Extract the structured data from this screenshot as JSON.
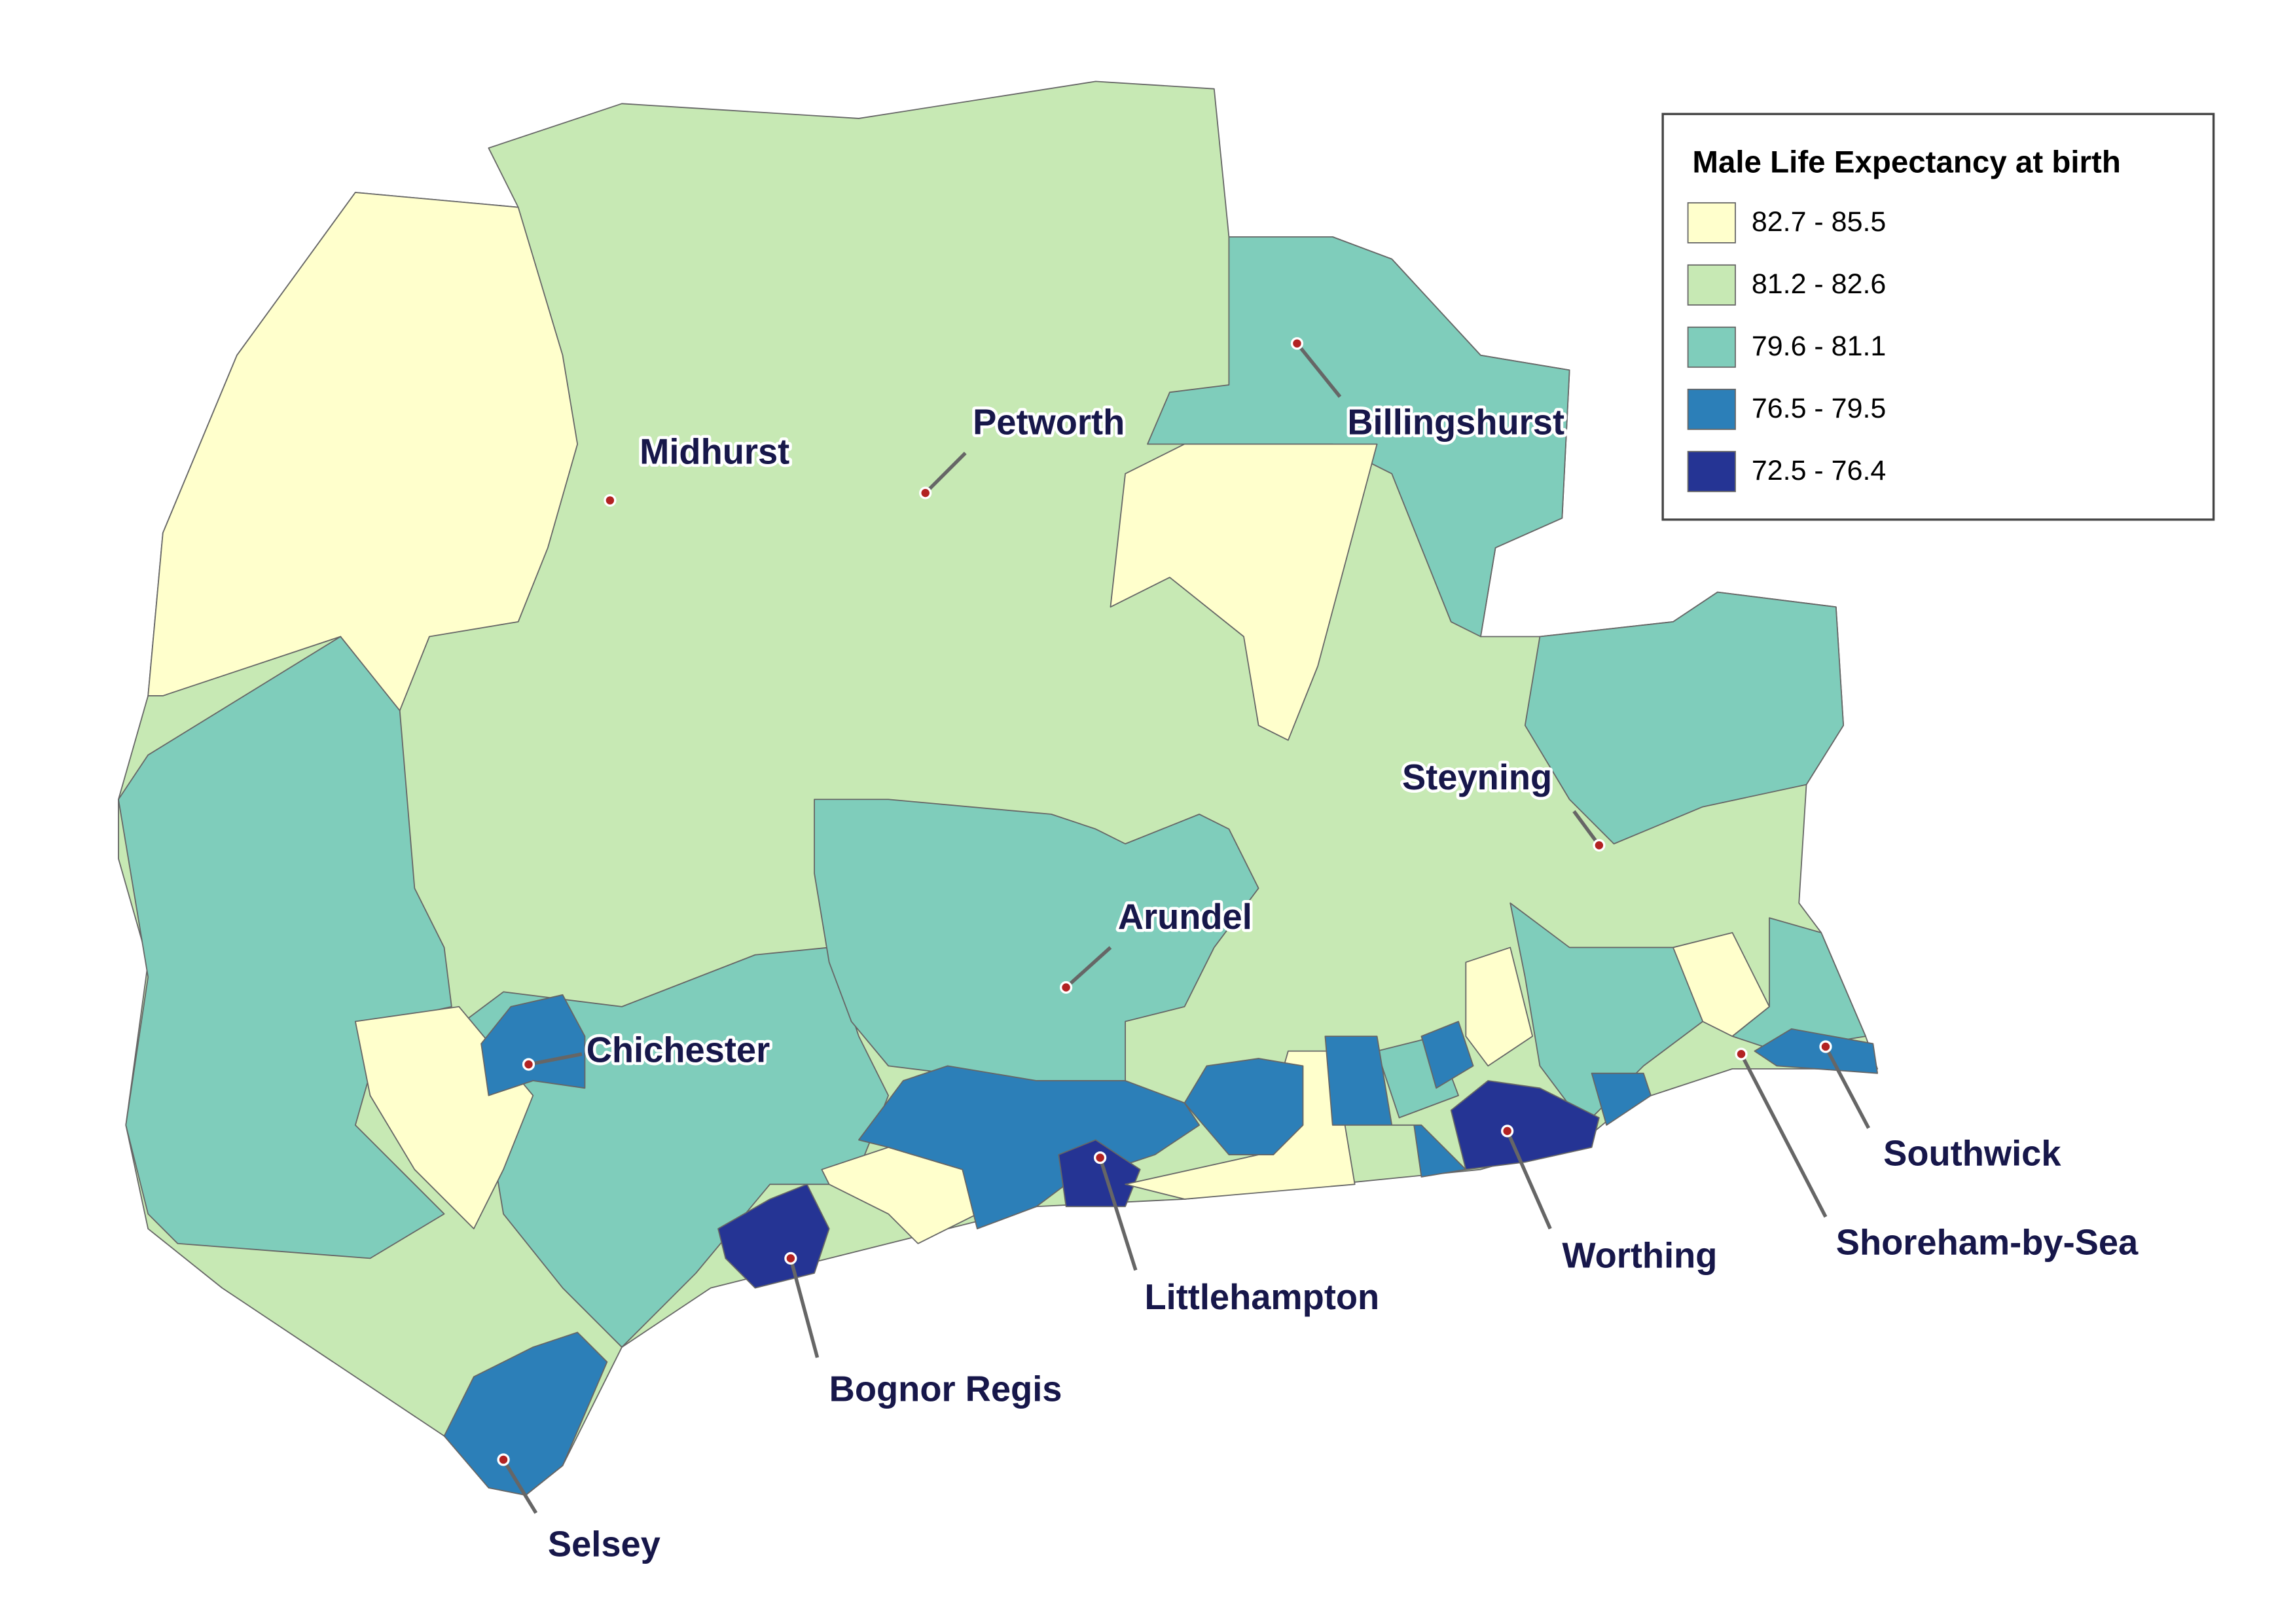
{
  "legend": {
    "title": "Male Life Expectancy at birth",
    "items": [
      {
        "label": "82.7 - 85.5",
        "color": "#ffffcc"
      },
      {
        "label": "81.2 - 82.6",
        "color": "#c7e9b4"
      },
      {
        "label": "79.6 - 81.1",
        "color": "#7fcdbb"
      },
      {
        "label": "76.5 - 79.5",
        "color": "#2c7fb8"
      },
      {
        "label": "72.5 - 76.4",
        "color": "#253494"
      }
    ]
  },
  "towns": [
    {
      "name": "Midhurst"
    },
    {
      "name": "Petworth"
    },
    {
      "name": "Billingshurst"
    },
    {
      "name": "Steyning"
    },
    {
      "name": "Arundel"
    },
    {
      "name": "Chichester"
    },
    {
      "name": "Selsey"
    },
    {
      "name": "Bognor Regis"
    },
    {
      "name": "Littlehampton"
    },
    {
      "name": "Worthing"
    },
    {
      "name": "Shoreham-by-Sea"
    },
    {
      "name": "Southwick"
    }
  ]
}
